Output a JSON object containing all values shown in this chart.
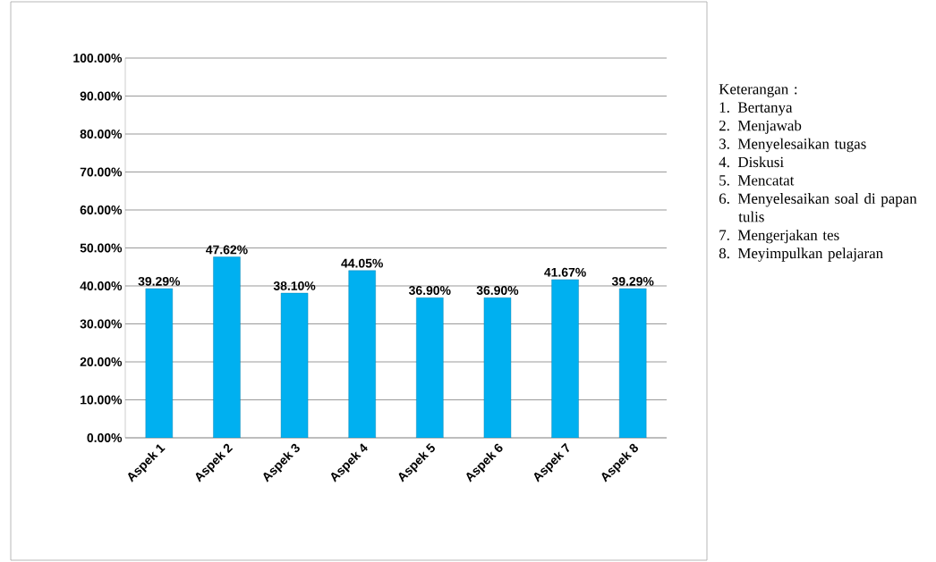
{
  "chart_data": {
    "type": "bar",
    "categories": [
      "Aspek 1",
      "Aspek 2",
      "Aspek 3",
      "Aspek 4",
      "Aspek 5",
      "Aspek 6",
      "Aspek 7",
      "Aspek 8"
    ],
    "values": [
      39.29,
      47.62,
      38.1,
      44.05,
      36.9,
      36.9,
      41.67,
      39.29
    ],
    "value_labels": [
      "39.29%",
      "47.62%",
      "38.10%",
      "44.05%",
      "36.90%",
      "36.90%",
      "41.67%",
      "39.29%"
    ],
    "color": "#00b0f0",
    "ylim": [
      0,
      100
    ],
    "yticks": [
      {
        "value": 0,
        "label": "0.00%"
      },
      {
        "value": 10,
        "label": "10.00%"
      },
      {
        "value": 20,
        "label": "20.00%"
      },
      {
        "value": 30,
        "label": "30.00%"
      },
      {
        "value": 40,
        "label": "40.00%"
      },
      {
        "value": 50,
        "label": "50.00%"
      },
      {
        "value": 60,
        "label": "60.00%"
      },
      {
        "value": 70,
        "label": "70.00%"
      },
      {
        "value": 80,
        "label": "80.00%"
      },
      {
        "value": 90,
        "label": "90.00%"
      },
      {
        "value": 100,
        "label": "100.00%"
      }
    ],
    "grid": "y",
    "annotations": [
      "Keterangan :",
      "1. Bertanya",
      "2. Menjawab",
      "3. Menyelesaikan tugas",
      "4. Diskusi",
      "5. Mencatat",
      "6. Menyelesaikan soal di papan tulis",
      "7. Mengerjakan tes",
      "8. Meyimpulkan pelajaran"
    ]
  }
}
